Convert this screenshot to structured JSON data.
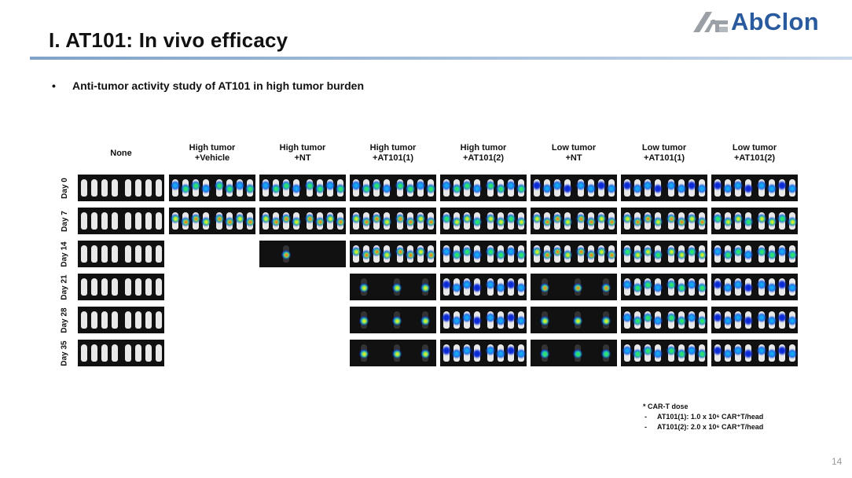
{
  "slide": {
    "title": "I. AT101: In vivo efficacy",
    "logo_text": "AbClon",
    "bullet": "Anti-tumor activity study of AT101 in high tumor burden",
    "page_number": "14"
  },
  "columns": [
    {
      "line1": "None",
      "line2": ""
    },
    {
      "line1": "High tumor",
      "line2": "+Vehicle"
    },
    {
      "line1": "High tumor",
      "line2": "+NT"
    },
    {
      "line1": "High tumor",
      "line2": "+AT101(1)"
    },
    {
      "line1": "High tumor",
      "line2": "+AT101(2)"
    },
    {
      "line1": "Low tumor",
      "line2": "+NT"
    },
    {
      "line1": "Low tumor",
      "line2": "+AT101(1)"
    },
    {
      "line1": "Low tumor",
      "line2": "+AT101(2)"
    }
  ],
  "rows": [
    "Day 0",
    "Day 7",
    "Day 14",
    "Day 21",
    "Day 28",
    "Day 35"
  ],
  "panels_present": [
    [
      1,
      1,
      1,
      1,
      1,
      1,
      1,
      1
    ],
    [
      1,
      1,
      1,
      1,
      1,
      1,
      1,
      1
    ],
    [
      1,
      0,
      1,
      1,
      1,
      1,
      1,
      1
    ],
    [
      1,
      0,
      0,
      1,
      1,
      1,
      1,
      1
    ],
    [
      1,
      0,
      0,
      1,
      1,
      1,
      1,
      1
    ],
    [
      1,
      0,
      0,
      1,
      1,
      1,
      1,
      1
    ]
  ],
  "notes": {
    "heading": "* CAR-T dose",
    "items": [
      {
        "dash": "-",
        "text": "AT101(1): 1.0 x 10⁶ CAR⁺T/head"
      },
      {
        "dash": "-",
        "text": "AT101(2): 2.0 x 10⁶ CAR⁺T/head"
      }
    ]
  },
  "colors": {
    "title_rule": "#7fa3c9",
    "logo_blue": "#2a5a9e",
    "logo_gray": "#9aa0a6"
  }
}
